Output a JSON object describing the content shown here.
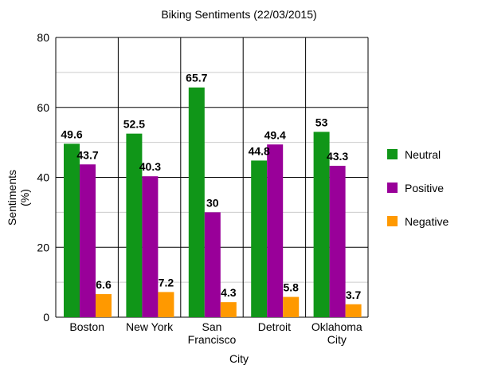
{
  "chart_data": {
    "type": "bar",
    "title": "Biking Sentiments (22/03/2015)",
    "xlabel": "City",
    "ylabel": "Sentiments (%)",
    "ylabel_lines": [
      "Sentiments",
      "(%)"
    ],
    "ylim": [
      0,
      80
    ],
    "yticks": [
      0,
      20,
      40,
      60,
      80
    ],
    "minor_step": 10,
    "grid": true,
    "legend_position": "right",
    "categories": [
      "Boston",
      "New York",
      "San Francisco",
      "Detroit",
      "Oklahoma City"
    ],
    "category_lines": [
      [
        "Boston"
      ],
      [
        "New York"
      ],
      [
        "San",
        "Francisco"
      ],
      [
        "Detroit"
      ],
      [
        "Oklahoma",
        "City"
      ]
    ],
    "series": [
      {
        "name": "Neutral",
        "color": "#109618",
        "values": [
          49.6,
          52.5,
          65.7,
          44.8,
          53
        ],
        "labels": [
          "49.6",
          "52.5",
          "65.7",
          "44.8",
          "53"
        ]
      },
      {
        "name": "Positive",
        "color": "#990099",
        "values": [
          43.7,
          40.3,
          30,
          49.4,
          43.3
        ],
        "labels": [
          "43.7",
          "40.3",
          "30",
          "49.4",
          "43.3"
        ]
      },
      {
        "name": "Negative",
        "color": "#ff9900",
        "values": [
          6.6,
          7.2,
          4.3,
          5.8,
          3.7
        ],
        "labels": [
          "6.6",
          "7.2",
          "4.3",
          "5.8",
          "3.7"
        ]
      }
    ]
  }
}
